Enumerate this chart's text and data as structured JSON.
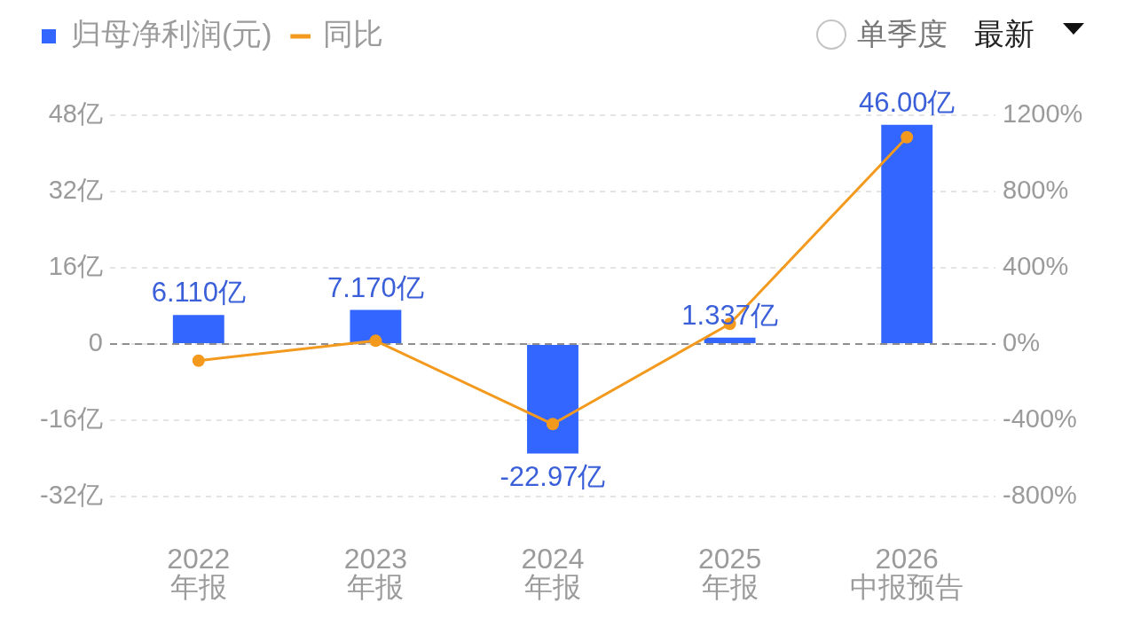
{
  "chart_data": {
    "type": "bar",
    "categories": [
      "2022\n年报",
      "2023\n年报",
      "2024\n年报",
      "2025\n年报",
      "2026\n中报预告"
    ],
    "series": [
      {
        "name": "归母净利润(元)",
        "color": "#3366ff",
        "values": [
          6.11,
          7.17,
          -22.97,
          1.337,
          46.0
        ],
        "value_labels": [
          "6.110亿",
          "7.170亿",
          "-22.97亿",
          "1.337亿",
          "46.00亿"
        ]
      },
      {
        "name": "同比",
        "type": "line",
        "axis": "y2",
        "color": "#f39a1e",
        "values": [
          -87,
          17,
          -420,
          106,
          1085
        ]
      }
    ],
    "ylim": [
      -32,
      48
    ],
    "yticks": [
      {
        "value": -32,
        "label": "-32亿"
      },
      {
        "value": -16,
        "label": "-16亿"
      },
      0,
      {
        "value": 16,
        "label": "16亿"
      },
      {
        "value": 32,
        "label": "32亿"
      },
      {
        "value": 48,
        "label": "48亿"
      }
    ],
    "y2lim": [
      -800,
      1200
    ],
    "y2ticks": [
      {
        "value": -800,
        "label": "-800%"
      },
      {
        "value": -400,
        "label": "-400%"
      },
      {
        "value": 0,
        "label": "0%"
      },
      {
        "value": 400,
        "label": "400%"
      },
      {
        "value": 800,
        "label": "800%"
      },
      {
        "value": 1200,
        "label": "1200%"
      }
    ],
    "ref_lines": [
      {
        "axis": "y",
        "value": 0,
        "color": "#8e8e8e",
        "line_style": "dashed"
      }
    ],
    "grid": "y",
    "legend": "top left",
    "marker": "circle",
    "line_style": "solid",
    "annotations": [
      "单季度",
      "最新"
    ]
  }
}
